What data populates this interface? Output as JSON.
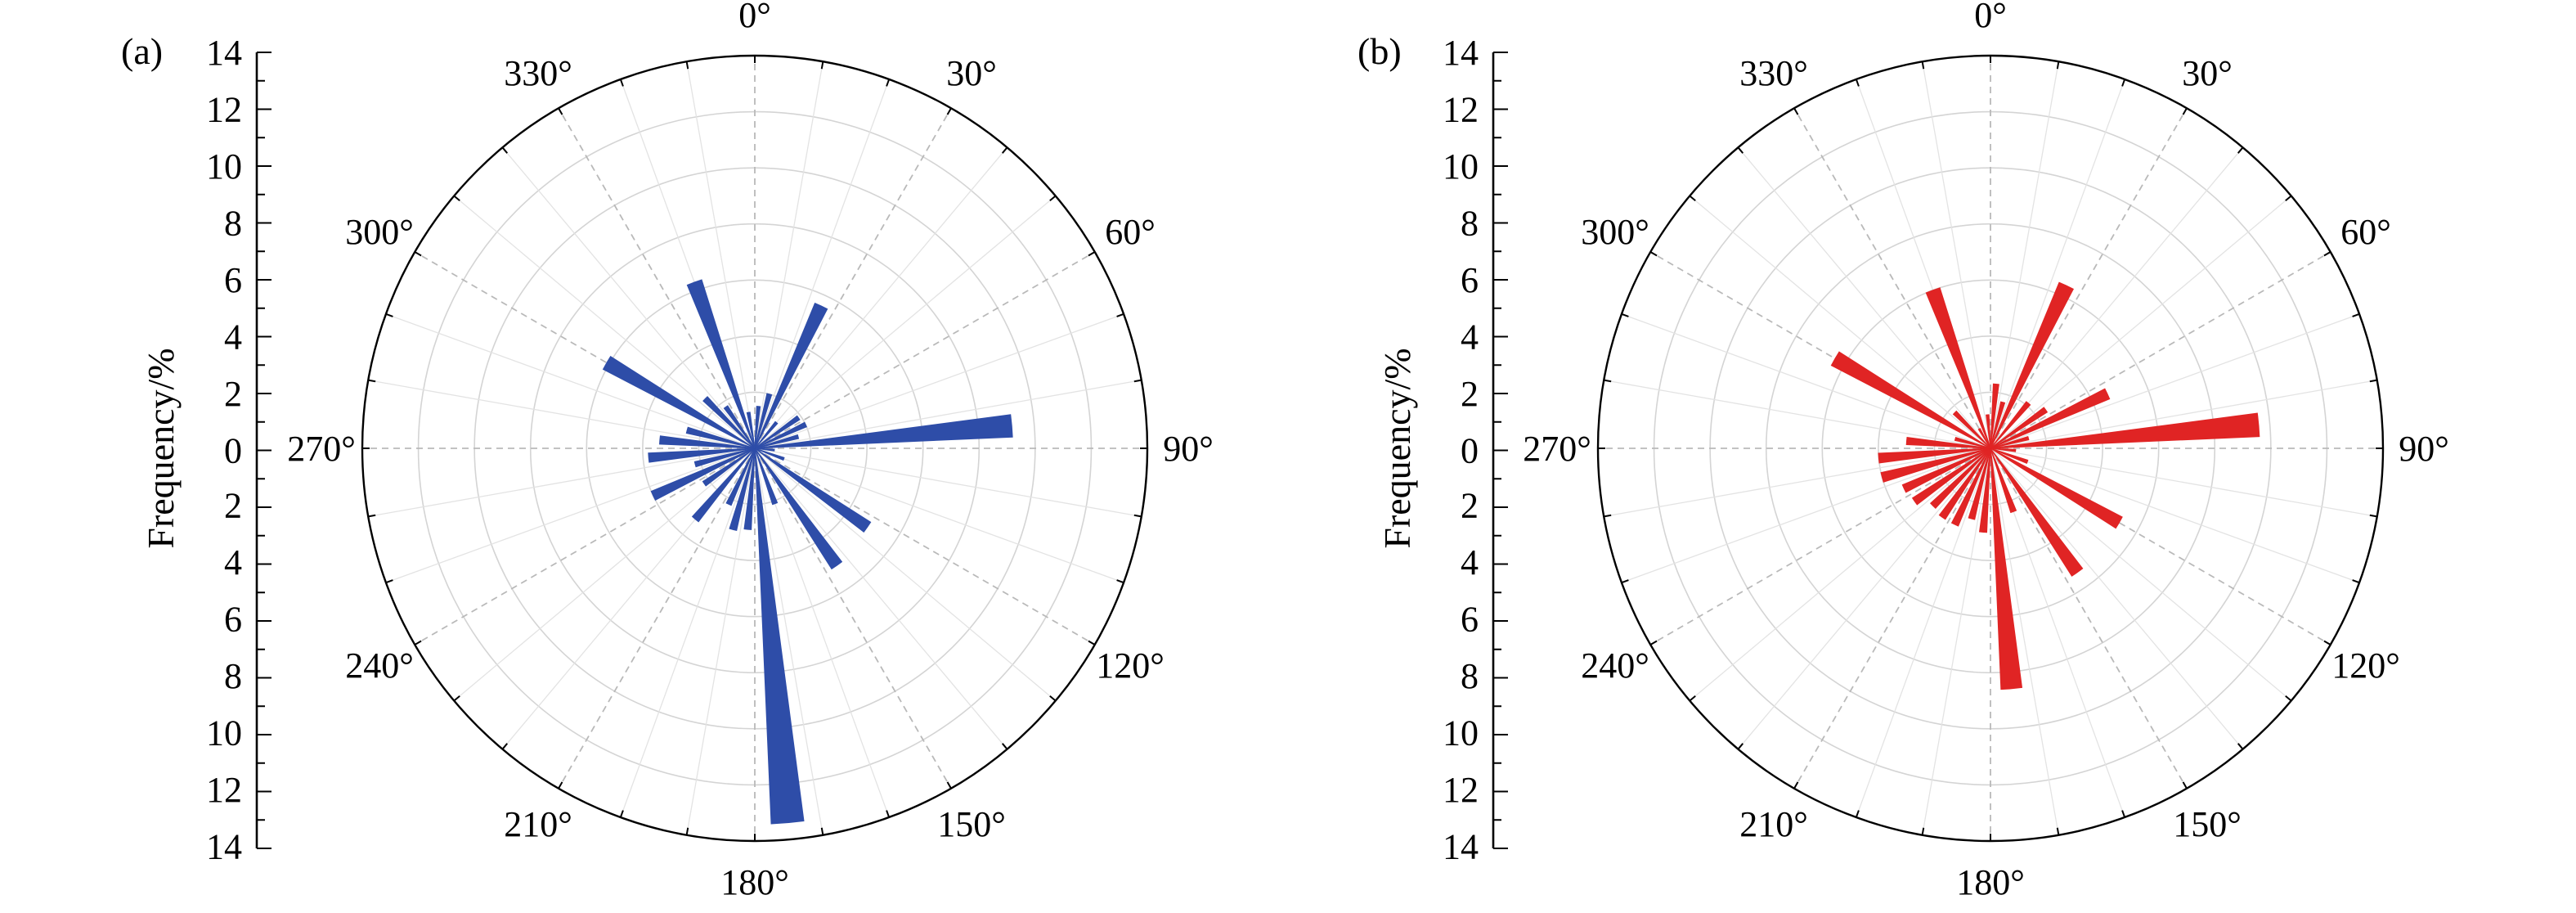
{
  "chart_data": [
    {
      "panel_label": "(a)",
      "type": "rose",
      "ylabel": "Frequency/%",
      "radial_ticks": [
        "0",
        "2",
        "4",
        "6",
        "8",
        "10",
        "12",
        "14"
      ],
      "rlim": [
        0,
        14
      ],
      "angle_labels": [
        "0°",
        "30°",
        "60°",
        "90°",
        "120°",
        "150°",
        "180°",
        "210°",
        "240°",
        "270°",
        "300°",
        "330°"
      ],
      "bar_color": "#2e4da8",
      "bin_width_deg": 5,
      "bars": [
        {
          "direction": 5,
          "frequency": 1.5
        },
        {
          "direction": 15,
          "frequency": 2.0
        },
        {
          "direction": 25,
          "frequency": 5.6
        },
        {
          "direction": 40,
          "frequency": 1.2
        },
        {
          "direction": 55,
          "frequency": 1.9
        },
        {
          "direction": 65,
          "frequency": 2.0
        },
        {
          "direction": 75,
          "frequency": 1.6
        },
        {
          "direction": 85,
          "frequency": 9.2
        },
        {
          "direction": 95,
          "frequency": 0.7
        },
        {
          "direction": 110,
          "frequency": 1.1
        },
        {
          "direction": 125,
          "frequency": 4.9
        },
        {
          "direction": 145,
          "frequency": 5.1
        },
        {
          "direction": 160,
          "frequency": 2.1
        },
        {
          "direction": 175,
          "frequency": 13.4
        },
        {
          "direction": 185,
          "frequency": 2.9
        },
        {
          "direction": 195,
          "frequency": 3.0
        },
        {
          "direction": 205,
          "frequency": 2.2
        },
        {
          "direction": 220,
          "frequency": 3.3
        },
        {
          "direction": 235,
          "frequency": 2.2
        },
        {
          "direction": 245,
          "frequency": 4.0
        },
        {
          "direction": 255,
          "frequency": 2.2
        },
        {
          "direction": 265,
          "frequency": 3.8
        },
        {
          "direction": 275,
          "frequency": 3.4
        },
        {
          "direction": 285,
          "frequency": 2.5
        },
        {
          "direction": 300,
          "frequency": 6.1
        },
        {
          "direction": 315,
          "frequency": 2.5
        },
        {
          "direction": 325,
          "frequency": 1.8
        },
        {
          "direction": 340,
          "frequency": 6.3
        },
        {
          "direction": 350,
          "frequency": 1.3
        }
      ]
    },
    {
      "panel_label": "(b)",
      "type": "rose",
      "ylabel": "Frequency/%",
      "radial_ticks": [
        "0",
        "2",
        "4",
        "6",
        "8",
        "10",
        "12",
        "14"
      ],
      "rlim": [
        0,
        14
      ],
      "angle_labels": [
        "0°",
        "30°",
        "60°",
        "90°",
        "120°",
        "150°",
        "180°",
        "210°",
        "240°",
        "270°",
        "300°",
        "330°"
      ],
      "bar_color": "#e02424",
      "bin_width_deg": 5,
      "bars": [
        {
          "direction": 5,
          "frequency": 2.3
        },
        {
          "direction": 15,
          "frequency": 1.7
        },
        {
          "direction": 25,
          "frequency": 6.4
        },
        {
          "direction": 40,
          "frequency": 2.1
        },
        {
          "direction": 55,
          "frequency": 2.4
        },
        {
          "direction": 65,
          "frequency": 4.6
        },
        {
          "direction": 75,
          "frequency": 1.4
        },
        {
          "direction": 85,
          "frequency": 9.6
        },
        {
          "direction": 95,
          "frequency": 0.9
        },
        {
          "direction": 110,
          "frequency": 1.4
        },
        {
          "direction": 120,
          "frequency": 5.3
        },
        {
          "direction": 145,
          "frequency": 5.4
        },
        {
          "direction": 160,
          "frequency": 2.4
        },
        {
          "direction": 175,
          "frequency": 8.6
        },
        {
          "direction": 185,
          "frequency": 3.0
        },
        {
          "direction": 195,
          "frequency": 2.6
        },
        {
          "direction": 205,
          "frequency": 3.0
        },
        {
          "direction": 215,
          "frequency": 3.0
        },
        {
          "direction": 225,
          "frequency": 2.9
        },
        {
          "direction": 235,
          "frequency": 3.3
        },
        {
          "direction": 245,
          "frequency": 3.4
        },
        {
          "direction": 255,
          "frequency": 4.0
        },
        {
          "direction": 265,
          "frequency": 4.0
        },
        {
          "direction": 275,
          "frequency": 3.0
        },
        {
          "direction": 285,
          "frequency": 1.3
        },
        {
          "direction": 300,
          "frequency": 6.4
        },
        {
          "direction": 315,
          "frequency": 1.8
        },
        {
          "direction": 330,
          "frequency": 0.8
        },
        {
          "direction": 340,
          "frequency": 6.0
        },
        {
          "direction": 355,
          "frequency": 1.2
        }
      ]
    }
  ]
}
